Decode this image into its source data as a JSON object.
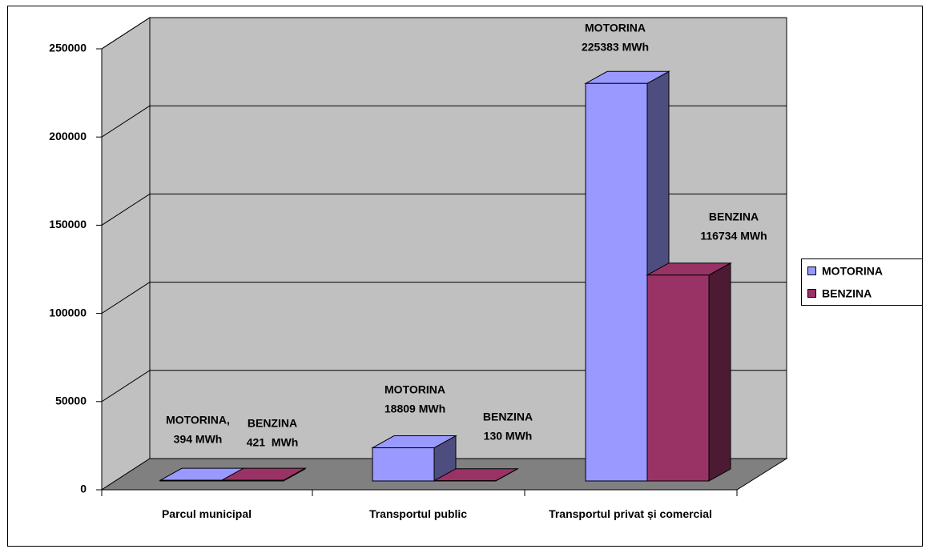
{
  "chart_data": {
    "type": "bar3d",
    "categories": [
      "Parcul municipal",
      "Transportul public",
      "Transportul privat și comercial"
    ],
    "series": [
      {
        "name": "MOTORINA",
        "color": "#9999ff",
        "side_color": "#4d4d80",
        "values": [
          394,
          18809,
          225383
        ],
        "value_labels": [
          [
            "MOTORINA,",
            "394 MWh"
          ],
          [
            "MOTORINA",
            "18809 MWh"
          ],
          [
            "MOTORINA",
            "225383 MWh"
          ]
        ]
      },
      {
        "name": "BENZINA",
        "color": "#993366",
        "side_color": "#4d1a33",
        "values": [
          421,
          130,
          116734
        ],
        "value_labels": [
          [
            "BENZINA",
            "421  MWh"
          ],
          [
            "BENZINA",
            "130 MWh"
          ],
          [
            "BENZINA",
            "116734 MWh"
          ]
        ]
      }
    ],
    "ylim": [
      0,
      250000
    ],
    "yticks": [
      0,
      50000,
      100000,
      150000,
      200000,
      250000
    ],
    "grid": true,
    "legend": "right"
  }
}
